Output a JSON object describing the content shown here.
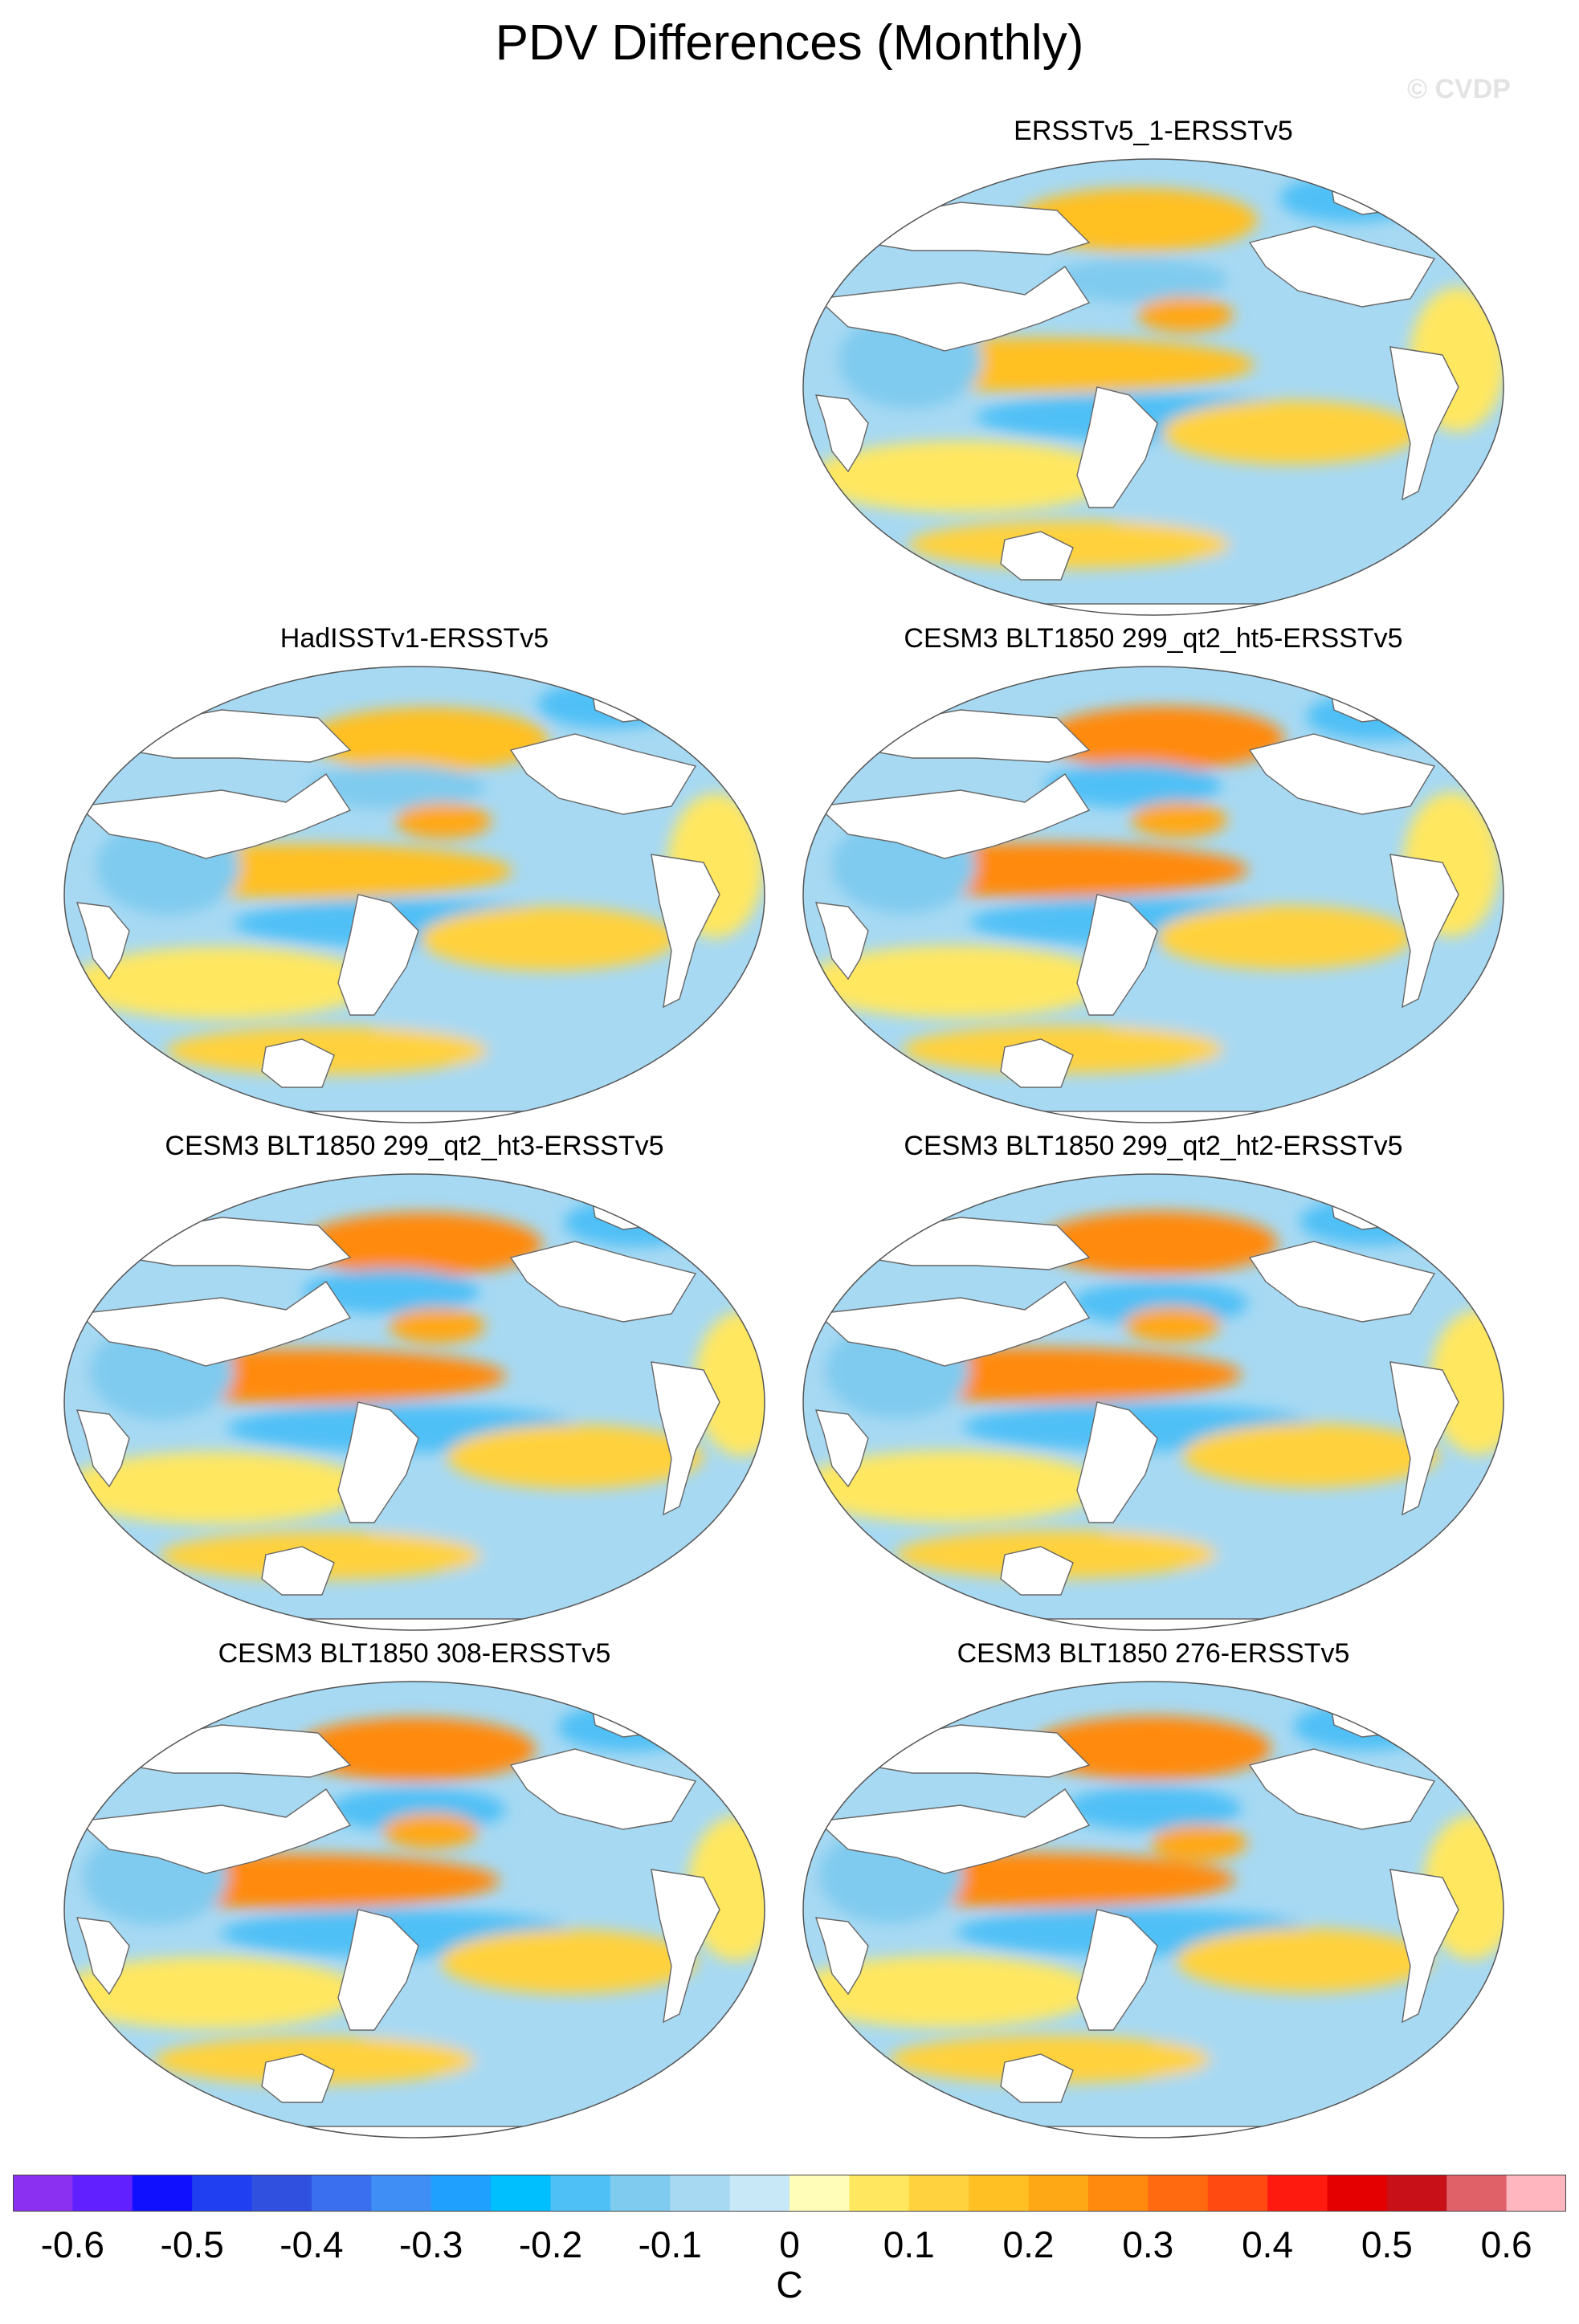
{
  "title": "PDV Differences (Monthly)",
  "watermark": "© CVDP",
  "panels": [
    {
      "title": "ERSSTv5_1-ERSSTv5"
    },
    {
      "title": "HadISSTv1-ERSSTv5"
    },
    {
      "title": "CESM3 BLT1850 299_qt2_ht5-ERSSTv5"
    },
    {
      "title": "CESM3 BLT1850 299_qt2_ht3-ERSSTv5"
    },
    {
      "title": "CESM3 BLT1850 299_qt2_ht2-ERSSTv5"
    },
    {
      "title": "CESM3 BLT1850 308-ERSSTv5"
    },
    {
      "title": "CESM3 BLT1850 276-ERSSTv5"
    }
  ],
  "colorbar": {
    "units": "C",
    "colors": [
      "#8b30f0",
      "#6020ff",
      "#1010ff",
      "#1f3ff0",
      "#3050e0",
      "#3a6ff0",
      "#3f8ef5",
      "#1fa0ff",
      "#00bfff",
      "#4fc0f6",
      "#7fcbef",
      "#a7d9f3",
      "#c9e8f7",
      "#fffdb8",
      "#ffe760",
      "#ffd23e",
      "#ffc024",
      "#ffa815",
      "#ff8a0e",
      "#ff6a10",
      "#ff4a12",
      "#ff1a10",
      "#e50000",
      "#c81018",
      "#e06168",
      "#ffb6bf"
    ],
    "labels": [
      "-0.6",
      "-0.5",
      "-0.4",
      "-0.3",
      "-0.2",
      "-0.1",
      "0",
      "0.1",
      "0.2",
      "0.3",
      "0.4",
      "0.5",
      "0.6"
    ]
  }
}
